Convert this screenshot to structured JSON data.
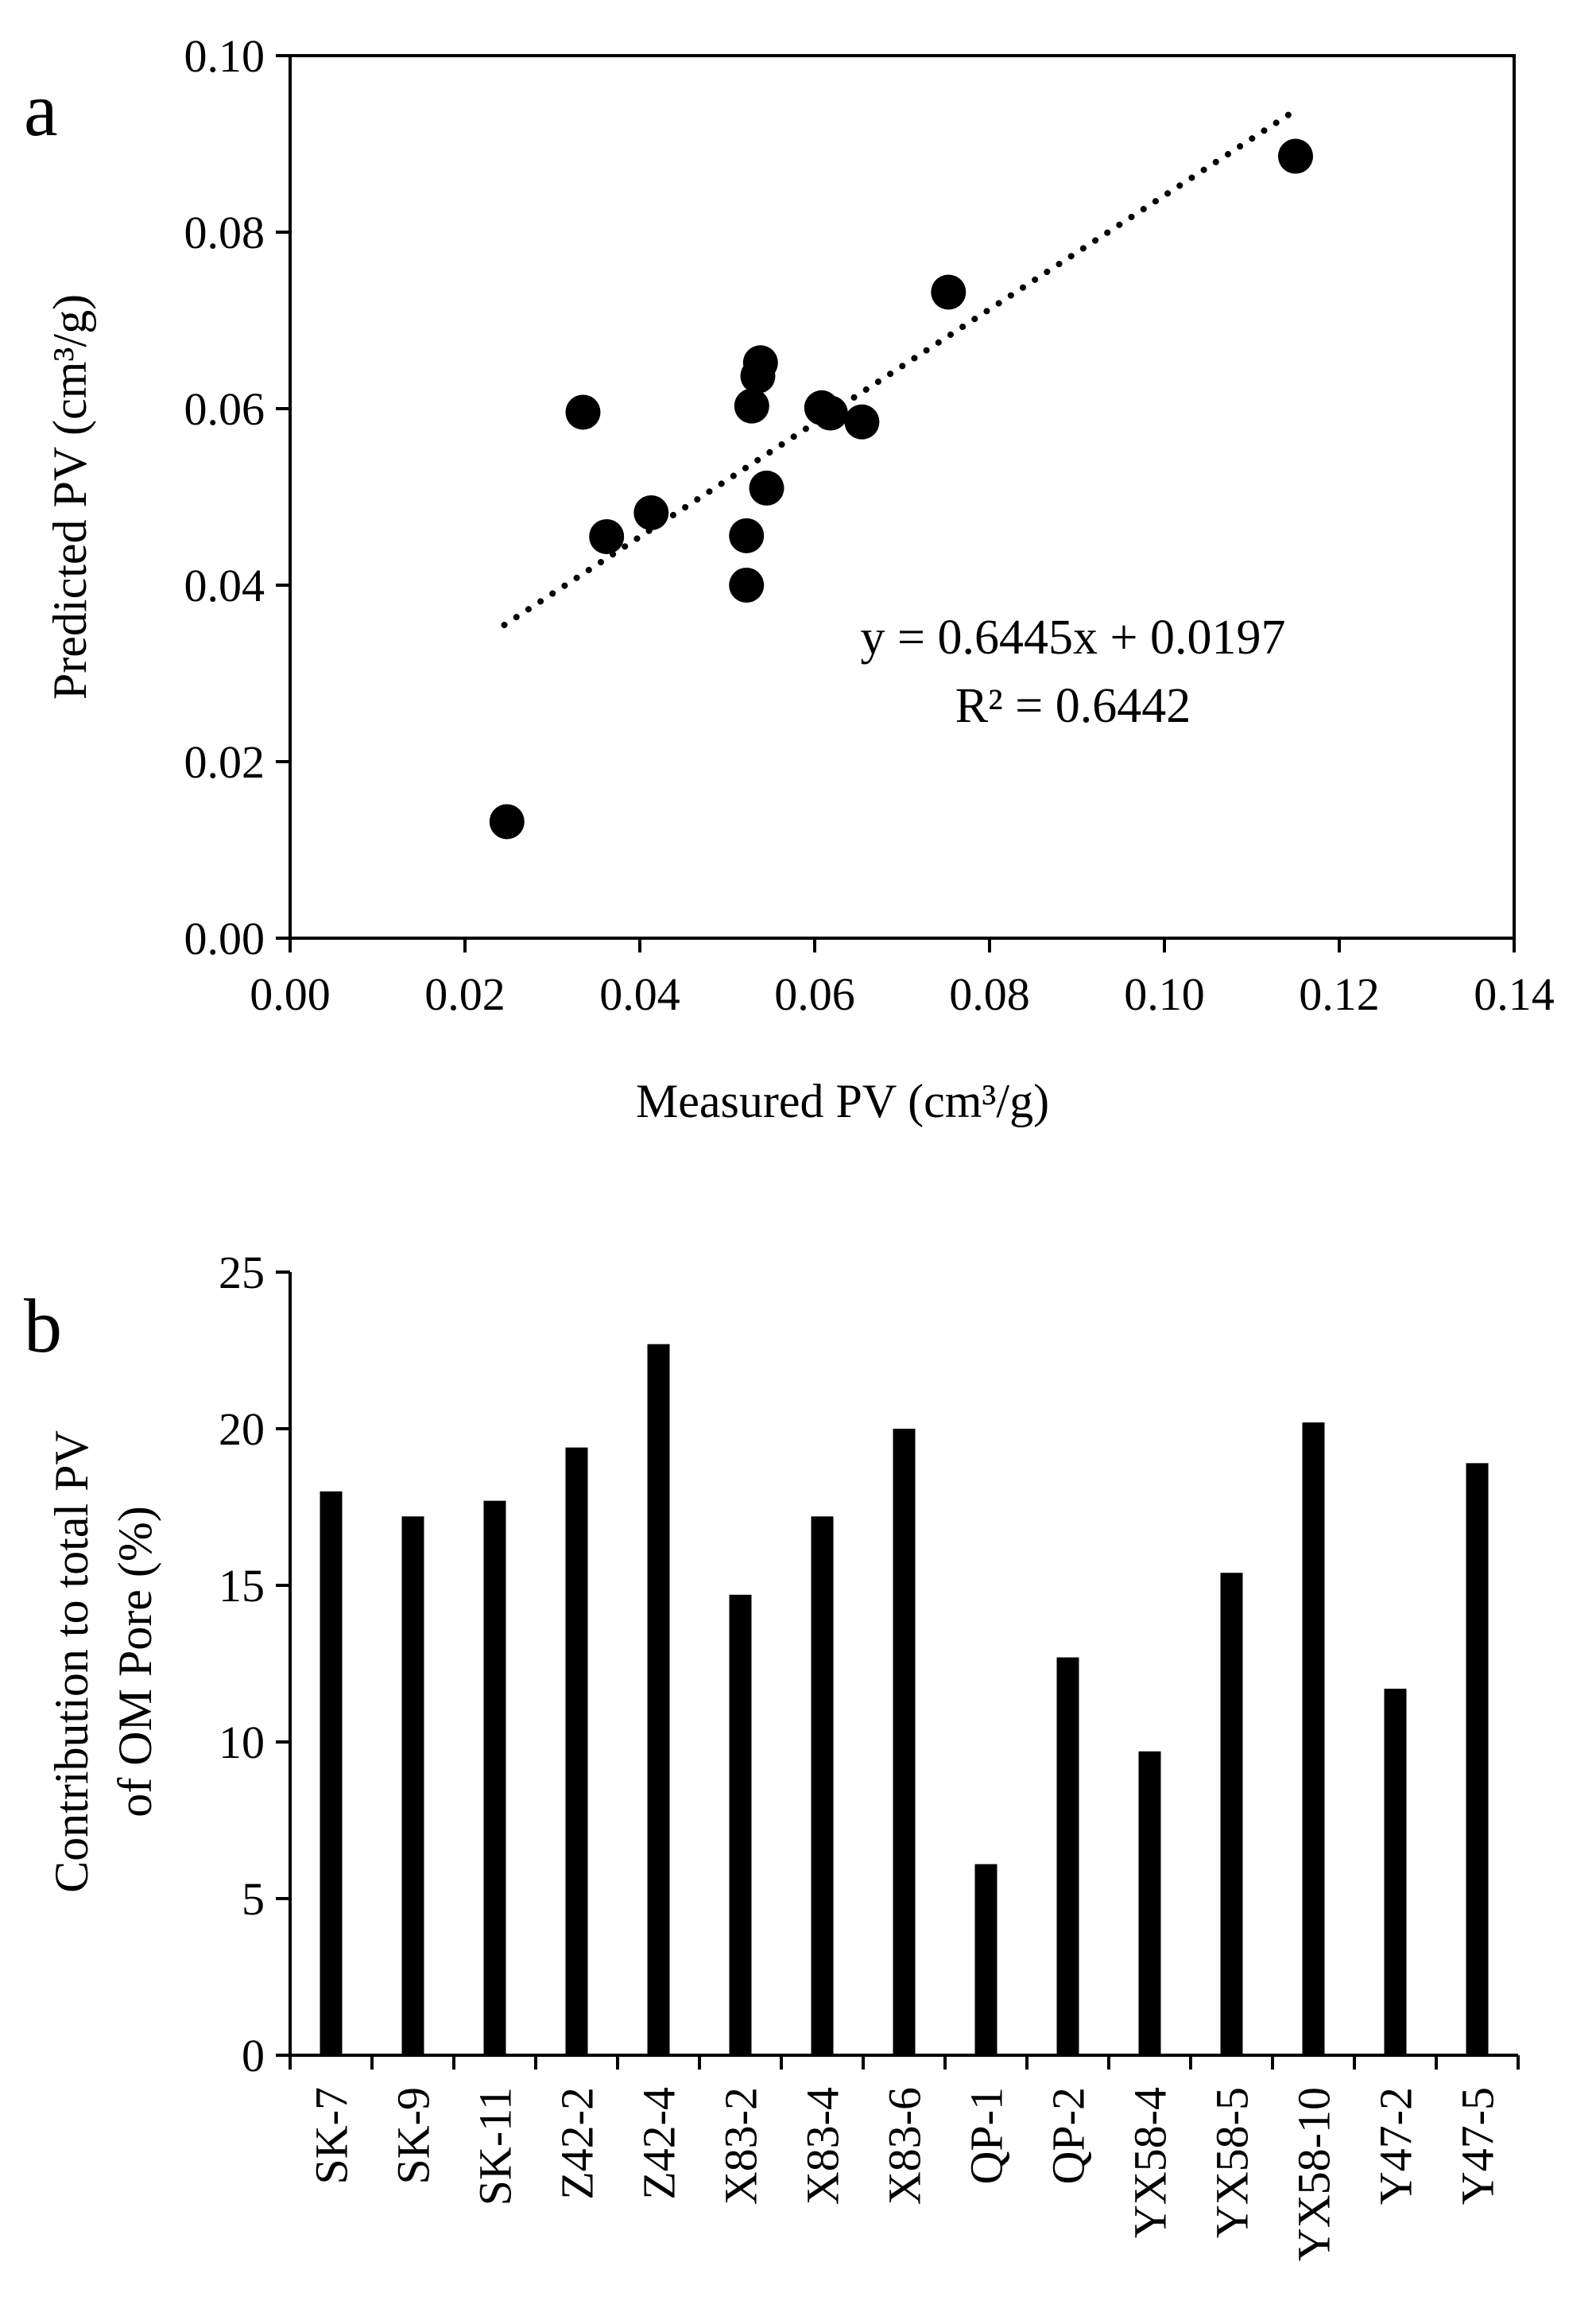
{
  "chart_data": [
    {
      "type": "scatter",
      "panel_label": "a",
      "xlabel": "Measured PV (cm³/g)",
      "ylabel": "Predicted PV (cm³/g)",
      "xlim": [
        0,
        0.14
      ],
      "ylim": [
        0,
        0.1
      ],
      "x_ticks": [
        "0.00",
        "0.02",
        "0.04",
        "0.06",
        "0.08",
        "0.10",
        "0.12",
        "0.14"
      ],
      "y_ticks": [
        "0.00",
        "0.02",
        "0.04",
        "0.06",
        "0.08",
        "0.10"
      ],
      "points": [
        {
          "x": 0.0248,
          "y": 0.0132
        },
        {
          "x": 0.0335,
          "y": 0.0596
        },
        {
          "x": 0.0362,
          "y": 0.0455
        },
        {
          "x": 0.0413,
          "y": 0.0482
        },
        {
          "x": 0.0522,
          "y": 0.04
        },
        {
          "x": 0.0522,
          "y": 0.0456
        },
        {
          "x": 0.0528,
          "y": 0.0603
        },
        {
          "x": 0.0535,
          "y": 0.0637
        },
        {
          "x": 0.0538,
          "y": 0.0652
        },
        {
          "x": 0.0545,
          "y": 0.051
        },
        {
          "x": 0.0608,
          "y": 0.0601
        },
        {
          "x": 0.0618,
          "y": 0.0595
        },
        {
          "x": 0.0654,
          "y": 0.0585
        },
        {
          "x": 0.0753,
          "y": 0.0732
        },
        {
          "x": 0.115,
          "y": 0.0886
        }
      ],
      "trendline": {
        "slope": 0.6445,
        "intercept": 0.0197,
        "x_range": [
          0.0245,
          0.115
        ],
        "style": "dotted"
      },
      "equation_text": "y = 0.6445x + 0.0197",
      "r2_text": "R² = 0.6442",
      "grid": false,
      "colors": {
        "marker": "#000000",
        "line": "#000000"
      }
    },
    {
      "type": "bar",
      "panel_label": "b",
      "ylabel_lines": [
        "Contribution to total PV",
        "of OM Pore (%)"
      ],
      "xlabel": "",
      "ylim": [
        0,
        25
      ],
      "y_ticks": [
        "0",
        "5",
        "10",
        "15",
        "20",
        "25"
      ],
      "categories": [
        "SK-7",
        "SK-9",
        "SK-11",
        "Z42-2",
        "Z42-4",
        "X83-2",
        "X83-4",
        "X83-6",
        "QP-1",
        "QP-2",
        "YX58-4",
        "YX58-5",
        "YX58-10",
        "Y47-2",
        "Y47-5"
      ],
      "values": [
        18.0,
        17.2,
        17.7,
        19.4,
        22.7,
        14.7,
        17.2,
        20.0,
        6.1,
        12.7,
        9.7,
        15.4,
        20.2,
        11.7,
        18.9
      ],
      "grid": false,
      "colors": {
        "bar": "#000000"
      }
    }
  ]
}
